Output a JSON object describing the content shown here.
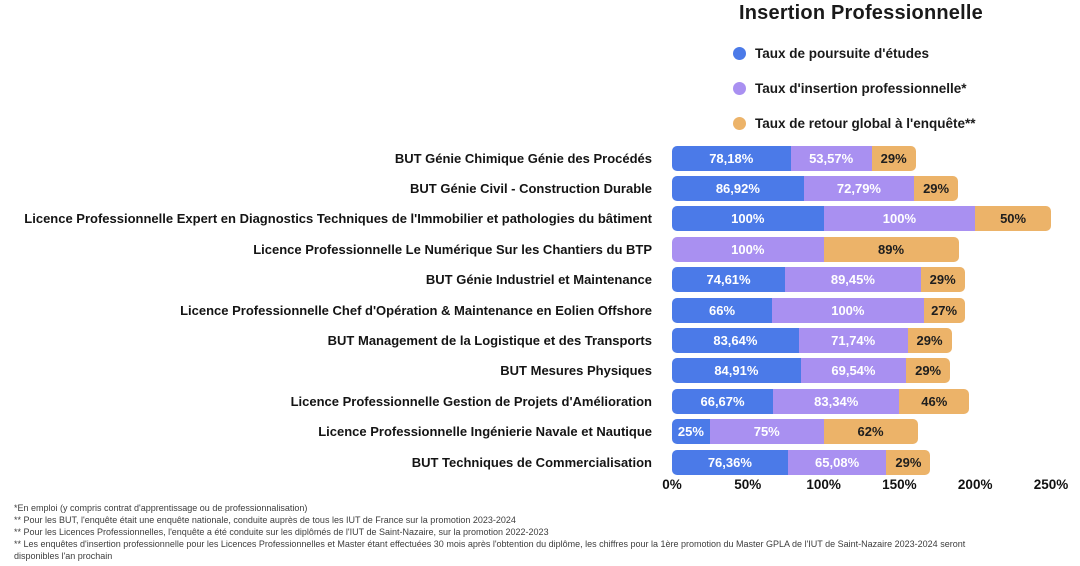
{
  "chart_data": {
    "type": "bar",
    "orientation": "horizontal",
    "stacked": true,
    "title": "Insertion Professionnelle",
    "legend_position": "top-right",
    "grid": false,
    "categories": [
      "BUT Génie Chimique Génie des Procédés",
      "BUT Génie Civil - Construction Durable",
      "Licence Professionnelle Expert en Diagnostics Techniques de l'Immobilier et pathologies du bâtiment",
      "Licence Professionnelle Le Numérique Sur les Chantiers du BTP",
      "BUT Génie Industriel et Maintenance",
      "Licence Professionnelle Chef d'Opération & Maintenance en Eolien Offshore",
      "BUT Management de la Logistique et des Transports",
      "BUT Mesures Physiques",
      "Licence Professionnelle Gestion de Projets d'Amélioration",
      "Licence Professionnelle Ingénierie Navale et Nautique",
      "BUT Techniques de Commercialisation"
    ],
    "series": [
      {
        "name": "Taux de poursuite d'études",
        "color": "#4b7ae8",
        "label_color": "#ffffff",
        "values": [
          78.18,
          86.92,
          100,
          0,
          74.61,
          66,
          83.64,
          84.91,
          66.67,
          25,
          76.36
        ],
        "labels": [
          "78,18%",
          "86,92%",
          "100%",
          "",
          "74,61%",
          "66%",
          "83,64%",
          "84,91%",
          "66,67%",
          "25%",
          "76,36%"
        ]
      },
      {
        "name": "Taux d'insertion professionnelle*",
        "color": "#a990f1",
        "label_color": "#ffffff",
        "values": [
          53.57,
          72.79,
          100,
          100,
          89.45,
          100,
          71.74,
          69.54,
          83.34,
          75,
          65.08
        ],
        "labels": [
          "53,57%",
          "72,79%",
          "100%",
          "100%",
          "89,45%",
          "100%",
          "71,74%",
          "69,54%",
          "83,34%",
          "75%",
          "65,08%"
        ]
      },
      {
        "name": "Taux de retour global à l'enquête**",
        "color": "#ecb369",
        "label_color": "#1e1e1e",
        "values": [
          29,
          29,
          50,
          89,
          29,
          27,
          29,
          29,
          46,
          62,
          29
        ],
        "labels": [
          "29%",
          "29%",
          "50%",
          "89%",
          "29%",
          "27%",
          "29%",
          "29%",
          "46%",
          "62%",
          "29%"
        ]
      }
    ],
    "x_axis": {
      "min": 0,
      "max": 250,
      "ticks": [
        "0%",
        "50%",
        "100%",
        "150%",
        "200%",
        "250%"
      ]
    },
    "xlabel": "",
    "ylabel": ""
  },
  "footnotes": [
    "*En emploi (y compris contrat d'apprentissage ou de professionnalisation)",
    "** Pour les BUT, l'enquête était une enquête nationale, conduite auprès de tous les IUT de France sur la promotion 2023-2024",
    "** Pour les Licences Professionnelles, l'enquête a été conduite sur les diplômés de l'IUT de Saint-Nazaire, sur la promotion 2022-2023",
    "** Les enquêtes d'insertion professionnelle pour les Licences Professionnelles et Master étant effectuées 30 mois après l'obtention du diplôme, les chiffres pour la 1ère promotion du Master GPLA de l'IUT de Saint-Nazaire 2023-2024 seront disponibles l'an prochain"
  ]
}
